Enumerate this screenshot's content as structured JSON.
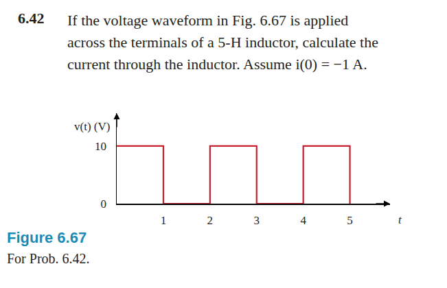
{
  "problem": {
    "number": "6.42",
    "lines": [
      "If the voltage waveform in Fig. 6.67 is applied",
      "across the terminals of a 5-H inductor, calculate the",
      "current through the inductor. Assume i(0) = −1 A."
    ]
  },
  "caption": {
    "title": "Figure 6.67",
    "text": "For Prob. 6.42."
  },
  "chart_data": {
    "type": "line",
    "y_label": "v(t) (V)",
    "x_label": "t",
    "x": [
      0,
      1,
      1,
      2,
      2,
      3,
      3,
      4,
      4,
      5,
      5
    ],
    "values": [
      10,
      10,
      0,
      0,
      10,
      10,
      0,
      0,
      10,
      10,
      0
    ],
    "color": "#c8202f",
    "xlim": [
      0,
      5.86
    ],
    "ylim": [
      0,
      15.7
    ],
    "xticks": [
      1,
      2,
      3,
      4,
      5
    ],
    "yticks": [
      0,
      10
    ],
    "grid": false
  }
}
